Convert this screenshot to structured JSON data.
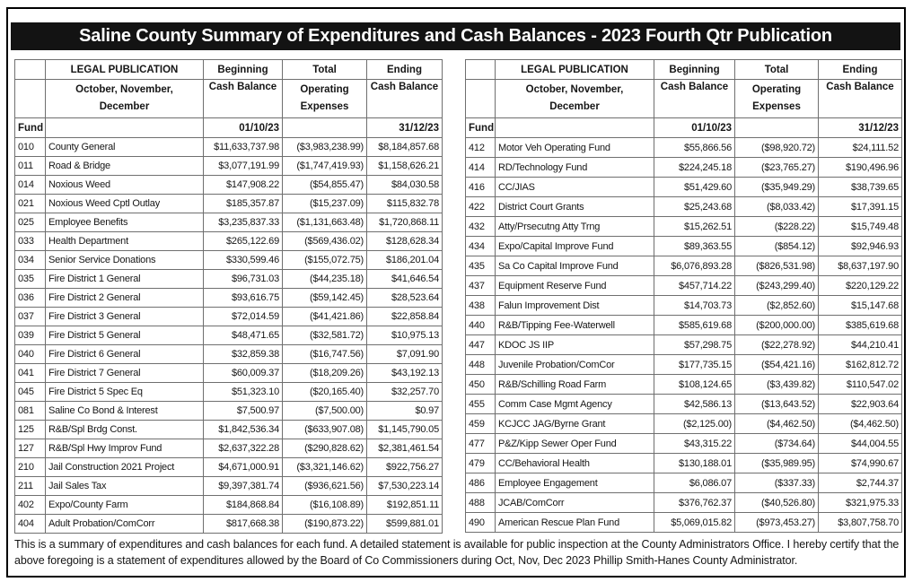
{
  "page": {
    "title": "Saline County Summary of Expenditures and Cash Balances - 2023 Fourth Qtr Publication",
    "footer": "This is a summary of expenditures and cash balances for each fund.  A detailed statement is available for public inspection at the County Administrators Office. I hereby certify that the above foregoing is a statement of expenditures allowed by the Board of Co Commissioners during Oct, Nov, Dec 2023 Phillip Smith-Hanes County Administrator."
  },
  "colors": {
    "title_bar_bg": "#131313",
    "title_bar_text": "#ffffff",
    "table_grid": "#6f6f6f"
  },
  "header": {
    "fund": "Fund",
    "legal_publication_line1": "LEGAL PUBLICATION",
    "legal_publication_line2": "October, November,",
    "legal_publication_line3": "December",
    "beginning_line1": "Beginning",
    "beginning_line2": "Cash Balance",
    "beginning_date": "01/10/23",
    "total_line1": "Total",
    "total_line2": "Operating",
    "total_line3": "Expenses",
    "ending_line1": "Ending",
    "ending_line2": "Cash Balance",
    "ending_date": "31/12/23"
  },
  "left_table": {
    "rows": [
      {
        "fund": "010",
        "name": "County General",
        "beginning": "$11,633,737.98",
        "expenses": "($3,983,238.99)",
        "ending": "$8,184,857.68"
      },
      {
        "fund": "011",
        "name": "Road & Bridge",
        "beginning": "$3,077,191.99",
        "expenses": "($1,747,419.93)",
        "ending": "$1,158,626.21"
      },
      {
        "fund": "014",
        "name": "Noxious Weed",
        "beginning": "$147,908.22",
        "expenses": "($54,855.47)",
        "ending": "$84,030.58"
      },
      {
        "fund": "021",
        "name": "Noxious Weed Cptl Outlay",
        "beginning": "$185,357.87",
        "expenses": "($15,237.09)",
        "ending": "$115,832.78"
      },
      {
        "fund": "025",
        "name": "Employee Benefits",
        "beginning": "$3,235,837.33",
        "expenses": "($1,131,663.48)",
        "ending": "$1,720,868.11"
      },
      {
        "fund": "033",
        "name": "Health Department",
        "beginning": "$265,122.69",
        "expenses": "($569,436.02)",
        "ending": "$128,628.34"
      },
      {
        "fund": "034",
        "name": "Senior Service Donations",
        "beginning": "$330,599.46",
        "expenses": "($155,072.75)",
        "ending": "$186,201.04"
      },
      {
        "fund": "035",
        "name": "Fire District 1 General",
        "beginning": "$96,731.03",
        "expenses": "($44,235.18)",
        "ending": "$41,646.54"
      },
      {
        "fund": "036",
        "name": "Fire District 2 General",
        "beginning": "$93,616.75",
        "expenses": "($59,142.45)",
        "ending": "$28,523.64"
      },
      {
        "fund": "037",
        "name": "Fire District 3 General",
        "beginning": "$72,014.59",
        "expenses": "($41,421.86)",
        "ending": "$22,858.84"
      },
      {
        "fund": "039",
        "name": "Fire District 5 General",
        "beginning": "$48,471.65",
        "expenses": "($32,581.72)",
        "ending": "$10,975.13"
      },
      {
        "fund": "040",
        "name": "Fire District 6 General",
        "beginning": "$32,859.38",
        "expenses": "($16,747.56)",
        "ending": "$7,091.90"
      },
      {
        "fund": "041",
        "name": "Fire District 7 General",
        "beginning": "$60,009.37",
        "expenses": "($18,209.26)",
        "ending": "$43,192.13"
      },
      {
        "fund": "045",
        "name": "Fire District 5 Spec Eq",
        "beginning": "$51,323.10",
        "expenses": "($20,165.40)",
        "ending": "$32,257.70"
      },
      {
        "fund": "081",
        "name": "Saline Co Bond & Interest",
        "beginning": "$7,500.97",
        "expenses": "($7,500.00)",
        "ending": "$0.97"
      },
      {
        "fund": "125",
        "name": "R&B/Spl Brdg Const.",
        "beginning": "$1,842,536.34",
        "expenses": "($633,907.08)",
        "ending": "$1,145,790.05"
      },
      {
        "fund": "127",
        "name": "R&B/Spl Hwy Improv Fund",
        "beginning": "$2,637,322.28",
        "expenses": "($290,828.62)",
        "ending": "$2,381,461.54"
      },
      {
        "fund": "210",
        "name": "Jail Construction 2021 Project",
        "beginning": "$4,671,000.91",
        "expenses": "($3,321,146.62)",
        "ending": "$922,756.27"
      },
      {
        "fund": "211",
        "name": "Jail Sales Tax",
        "beginning": "$9,397,381.74",
        "expenses": "($936,621.56)",
        "ending": "$7,530,223.14"
      },
      {
        "fund": "402",
        "name": "Expo/County Farm",
        "beginning": "$184,868.84",
        "expenses": "($16,108.89)",
        "ending": "$192,851.11"
      },
      {
        "fund": "404",
        "name": "Adult Probation/ComCorr",
        "beginning": "$817,668.38",
        "expenses": "($190,873.22)",
        "ending": "$599,881.01"
      }
    ]
  },
  "right_table": {
    "rows": [
      {
        "fund": "412",
        "name": "Motor Veh Operating Fund",
        "beginning": "$55,866.56",
        "expenses": "($98,920.72)",
        "ending": "$24,111.52"
      },
      {
        "fund": "414",
        "name": "RD/Technology Fund",
        "beginning": "$224,245.18",
        "expenses": "($23,765.27)",
        "ending": "$190,496.96"
      },
      {
        "fund": "416",
        "name": "CC/JIAS",
        "beginning": "$51,429.60",
        "expenses": "($35,949.29)",
        "ending": "$38,739.65"
      },
      {
        "fund": "422",
        "name": "District Court Grants",
        "beginning": "$25,243.68",
        "expenses": "($8,033.42)",
        "ending": "$17,391.15"
      },
      {
        "fund": "432",
        "name": "Atty/Prsecutng Atty Trng",
        "beginning": "$15,262.51",
        "expenses": "($228.22)",
        "ending": "$15,749.48"
      },
      {
        "fund": "434",
        "name": "Expo/Capital Improve Fund",
        "beginning": "$89,363.55",
        "expenses": "($854.12)",
        "ending": "$92,946.93"
      },
      {
        "fund": "435",
        "name": "Sa Co Capital Improve Fund",
        "beginning": "$6,076,893.28",
        "expenses": "($826,531.98)",
        "ending": "$8,637,197.90"
      },
      {
        "fund": "437",
        "name": "Equipment Reserve Fund",
        "beginning": "$457,714.22",
        "expenses": "($243,299.40)",
        "ending": "$220,129.22"
      },
      {
        "fund": "438",
        "name": "Falun Improvement Dist",
        "beginning": "$14,703.73",
        "expenses": "($2,852.60)",
        "ending": "$15,147.68"
      },
      {
        "fund": "440",
        "name": "R&B/Tipping Fee-Waterwell",
        "beginning": "$585,619.68",
        "expenses": "($200,000.00)",
        "ending": "$385,619.68"
      },
      {
        "fund": "447",
        "name": "KDOC JS IIP",
        "beginning": "$57,298.75",
        "expenses": "($22,278.92)",
        "ending": "$44,210.41"
      },
      {
        "fund": "448",
        "name": "Juvenile Probation/ComCor",
        "beginning": "$177,735.15",
        "expenses": "($54,421.16)",
        "ending": "$162,812.72"
      },
      {
        "fund": "450",
        "name": "R&B/Schilling Road Farm",
        "beginning": "$108,124.65",
        "expenses": "($3,439.82)",
        "ending": "$110,547.02"
      },
      {
        "fund": "455",
        "name": "Comm Case Mgmt Agency",
        "beginning": "$42,586.13",
        "expenses": "($13,643.52)",
        "ending": "$22,903.64"
      },
      {
        "fund": "459",
        "name": "KCJCC JAG/Byrne Grant",
        "beginning": "($2,125.00)",
        "expenses": "($4,462.50)",
        "ending": "($4,462.50)"
      },
      {
        "fund": "477",
        "name": "P&Z/Kipp Sewer Oper Fund",
        "beginning": "$43,315.22",
        "expenses": "($734.64)",
        "ending": "$44,004.55"
      },
      {
        "fund": "479",
        "name": "CC/Behavioral Health",
        "beginning": "$130,188.01",
        "expenses": "($35,989.95)",
        "ending": "$74,990.67"
      },
      {
        "fund": "486",
        "name": "Employee Engagement",
        "beginning": "$6,086.07",
        "expenses": "($337.33)",
        "ending": "$2,744.37"
      },
      {
        "fund": "488",
        "name": "JCAB/ComCorr",
        "beginning": "$376,762.37",
        "expenses": "($40,526.80)",
        "ending": "$321,975.33"
      },
      {
        "fund": "490",
        "name": "American Rescue Plan Fund",
        "beginning": "$5,069,015.82",
        "expenses": "($973,453.27)",
        "ending": "$3,807,758.70"
      }
    ]
  }
}
